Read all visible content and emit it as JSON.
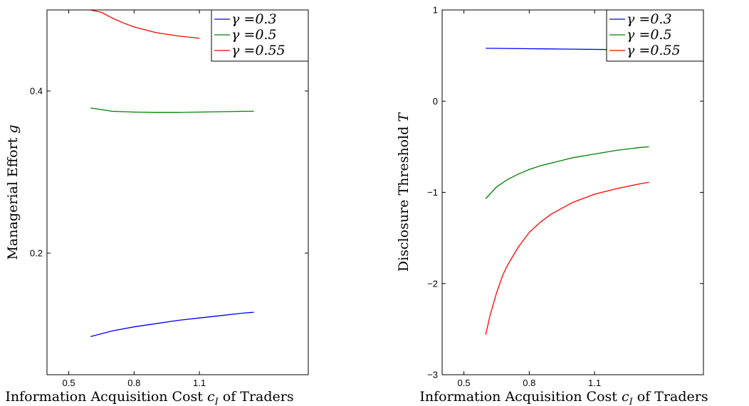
{
  "chart_data": [
    {
      "type": "line",
      "xlabel": "Information Acquisition Cost c",
      "xlabel_sub": "I",
      "xlabel_suffix": " of Traders",
      "ylabel": "Managerial Effort ",
      "ylabel_var": "g",
      "xlim": [
        0.4,
        1.6
      ],
      "ylim": [
        0.05,
        0.5
      ],
      "xticks": [
        0.5,
        0.8,
        1.1
      ],
      "xtick_labels": [
        "0.5",
        "0.8",
        "1.1"
      ],
      "yticks": [
        0.2,
        0.4
      ],
      "ytick_labels": [
        "0.2",
        "0.4"
      ],
      "grid": false,
      "legend_position": "top-right",
      "series": [
        {
          "name": "γ =0.3",
          "color": "#0000ff",
          "x": [
            0.6,
            0.7,
            0.8,
            0.9,
            1.0,
            1.1,
            1.2,
            1.3,
            1.35
          ],
          "y": [
            0.097,
            0.104,
            0.109,
            0.113,
            0.117,
            0.12,
            0.123,
            0.126,
            0.127
          ]
        },
        {
          "name": "γ =0.5",
          "color": "#008000",
          "x": [
            0.6,
            0.7,
            0.8,
            0.9,
            1.0,
            1.1,
            1.2,
            1.3,
            1.35
          ],
          "y": [
            0.379,
            0.375,
            0.374,
            0.3735,
            0.3735,
            0.374,
            0.3745,
            0.375,
            0.375
          ]
        },
        {
          "name": "γ =0.55",
          "color": "#ff0000",
          "x": [
            0.6,
            0.65,
            0.7,
            0.75,
            0.8,
            0.9,
            1.0,
            1.1
          ],
          "y": [
            0.5,
            0.497,
            0.49,
            0.484,
            0.479,
            0.472,
            0.468,
            0.465
          ]
        }
      ]
    },
    {
      "type": "line",
      "xlabel": "Information Acquisition Cost c",
      "xlabel_sub": "I",
      "xlabel_suffix": " of Traders",
      "ylabel": "Disclosure Threshold ",
      "ylabel_var": "T",
      "xlim": [
        0.4,
        1.6
      ],
      "ylim": [
        -3,
        1
      ],
      "xticks": [
        0.5,
        0.8,
        1.1
      ],
      "xtick_labels": [
        "0.5",
        "0.8",
        "1.1"
      ],
      "yticks": [
        -3,
        -2,
        -1,
        0,
        1
      ],
      "ytick_labels": [
        "−3",
        "−2",
        "−1",
        "0",
        "1"
      ],
      "grid": false,
      "legend_position": "top-right",
      "series": [
        {
          "name": "γ =0.3",
          "color": "#0000ff",
          "x": [
            0.6,
            0.8,
            1.0,
            1.2
          ],
          "y": [
            0.58,
            0.575,
            0.57,
            0.565
          ]
        },
        {
          "name": "γ =0.5",
          "color": "#008000",
          "x": [
            0.6,
            0.65,
            0.7,
            0.75,
            0.8,
            0.85,
            0.9,
            1.0,
            1.1,
            1.2,
            1.3,
            1.35
          ],
          "y": [
            -1.07,
            -0.94,
            -0.86,
            -0.8,
            -0.75,
            -0.71,
            -0.68,
            -0.62,
            -0.58,
            -0.54,
            -0.51,
            -0.5
          ]
        },
        {
          "name": "γ =0.55",
          "color": "#ff0000",
          "x": [
            0.6,
            0.62,
            0.65,
            0.68,
            0.7,
            0.75,
            0.8,
            0.85,
            0.9,
            1.0,
            1.1,
            1.2,
            1.3,
            1.35
          ],
          "y": [
            -2.56,
            -2.35,
            -2.1,
            -1.9,
            -1.8,
            -1.6,
            -1.44,
            -1.33,
            -1.24,
            -1.11,
            -1.02,
            -0.96,
            -0.91,
            -0.89
          ]
        }
      ]
    }
  ]
}
